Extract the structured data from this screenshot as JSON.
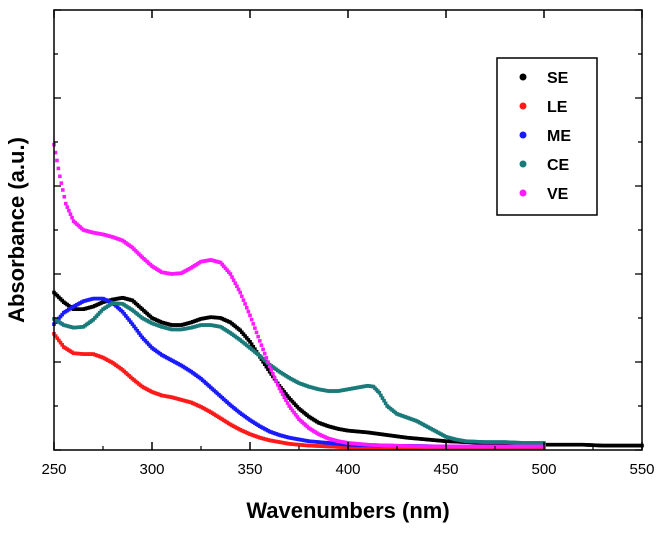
{
  "chart_data": {
    "type": "line",
    "title": "",
    "xlabel": "Wavenumbers (nm)",
    "ylabel": "Absorbance (a.u.)",
    "xlim": [
      250,
      550
    ],
    "ylim": [
      0,
      5
    ],
    "x_ticks": [
      250,
      300,
      350,
      400,
      450,
      500,
      550
    ],
    "y_tick_labels_shown": false,
    "grid": false,
    "legend_position": "top-right",
    "line_style": "dotted-markers",
    "series": [
      {
        "name": "SE",
        "color": "#000000",
        "points": [
          [
            250,
            1.79
          ],
          [
            255,
            1.68
          ],
          [
            260,
            1.6
          ],
          [
            265,
            1.6
          ],
          [
            270,
            1.63
          ],
          [
            275,
            1.68
          ],
          [
            280,
            1.71
          ],
          [
            285,
            1.73
          ],
          [
            290,
            1.7
          ],
          [
            295,
            1.6
          ],
          [
            300,
            1.5
          ],
          [
            305,
            1.45
          ],
          [
            310,
            1.42
          ],
          [
            315,
            1.42
          ],
          [
            320,
            1.45
          ],
          [
            325,
            1.49
          ],
          [
            330,
            1.51
          ],
          [
            335,
            1.5
          ],
          [
            340,
            1.45
          ],
          [
            345,
            1.36
          ],
          [
            350,
            1.23
          ],
          [
            355,
            1.06
          ],
          [
            360,
            0.89
          ],
          [
            365,
            0.73
          ],
          [
            370,
            0.59
          ],
          [
            375,
            0.47
          ],
          [
            380,
            0.38
          ],
          [
            385,
            0.31
          ],
          [
            390,
            0.27
          ],
          [
            395,
            0.24
          ],
          [
            400,
            0.22
          ],
          [
            410,
            0.2
          ],
          [
            420,
            0.17
          ],
          [
            430,
            0.14
          ],
          [
            440,
            0.12
          ],
          [
            450,
            0.1
          ],
          [
            460,
            0.09
          ],
          [
            470,
            0.08
          ],
          [
            480,
            0.07
          ],
          [
            490,
            0.07
          ],
          [
            500,
            0.06
          ],
          [
            510,
            0.06
          ],
          [
            520,
            0.06
          ],
          [
            530,
            0.05
          ],
          [
            540,
            0.05
          ],
          [
            550,
            0.05
          ]
        ]
      },
      {
        "name": "LE",
        "color": "#ff1a1a",
        "points": [
          [
            250,
            1.32
          ],
          [
            255,
            1.17
          ],
          [
            260,
            1.1
          ],
          [
            265,
            1.09
          ],
          [
            270,
            1.09
          ],
          [
            275,
            1.05
          ],
          [
            280,
            0.99
          ],
          [
            285,
            0.91
          ],
          [
            290,
            0.81
          ],
          [
            295,
            0.72
          ],
          [
            300,
            0.66
          ],
          [
            305,
            0.62
          ],
          [
            310,
            0.6
          ],
          [
            315,
            0.57
          ],
          [
            320,
            0.54
          ],
          [
            325,
            0.49
          ],
          [
            330,
            0.43
          ],
          [
            335,
            0.36
          ],
          [
            340,
            0.29
          ],
          [
            345,
            0.23
          ],
          [
            350,
            0.18
          ],
          [
            355,
            0.14
          ],
          [
            360,
            0.11
          ],
          [
            365,
            0.09
          ],
          [
            370,
            0.07
          ],
          [
            380,
            0.05
          ],
          [
            390,
            0.04
          ],
          [
            400,
            0.03
          ],
          [
            420,
            0.03
          ],
          [
            450,
            0.02
          ],
          [
            500,
            0.02
          ]
        ]
      },
      {
        "name": "ME",
        "color": "#1a1aff",
        "points": [
          [
            250,
            1.43
          ],
          [
            255,
            1.56
          ],
          [
            260,
            1.63
          ],
          [
            265,
            1.69
          ],
          [
            270,
            1.72
          ],
          [
            275,
            1.72
          ],
          [
            280,
            1.67
          ],
          [
            285,
            1.57
          ],
          [
            290,
            1.43
          ],
          [
            295,
            1.28
          ],
          [
            300,
            1.16
          ],
          [
            305,
            1.08
          ],
          [
            310,
            1.02
          ],
          [
            315,
            0.96
          ],
          [
            320,
            0.89
          ],
          [
            325,
            0.81
          ],
          [
            330,
            0.71
          ],
          [
            335,
            0.61
          ],
          [
            340,
            0.51
          ],
          [
            345,
            0.42
          ],
          [
            350,
            0.34
          ],
          [
            355,
            0.27
          ],
          [
            360,
            0.21
          ],
          [
            365,
            0.17
          ],
          [
            370,
            0.14
          ],
          [
            380,
            0.1
          ],
          [
            390,
            0.08
          ],
          [
            400,
            0.06
          ],
          [
            420,
            0.05
          ],
          [
            450,
            0.04
          ],
          [
            480,
            0.04
          ],
          [
            500,
            0.04
          ]
        ]
      },
      {
        "name": "CE",
        "color": "#1a7a7a",
        "points": [
          [
            250,
            1.49
          ],
          [
            255,
            1.42
          ],
          [
            260,
            1.39
          ],
          [
            265,
            1.4
          ],
          [
            270,
            1.48
          ],
          [
            275,
            1.6
          ],
          [
            280,
            1.67
          ],
          [
            285,
            1.66
          ],
          [
            290,
            1.59
          ],
          [
            295,
            1.5
          ],
          [
            300,
            1.44
          ],
          [
            305,
            1.4
          ],
          [
            310,
            1.37
          ],
          [
            315,
            1.37
          ],
          [
            320,
            1.39
          ],
          [
            325,
            1.42
          ],
          [
            330,
            1.42
          ],
          [
            335,
            1.4
          ],
          [
            340,
            1.33
          ],
          [
            345,
            1.25
          ],
          [
            350,
            1.16
          ],
          [
            355,
            1.07
          ],
          [
            360,
            0.97
          ],
          [
            365,
            0.89
          ],
          [
            370,
            0.82
          ],
          [
            375,
            0.76
          ],
          [
            380,
            0.72
          ],
          [
            385,
            0.69
          ],
          [
            390,
            0.67
          ],
          [
            395,
            0.67
          ],
          [
            400,
            0.69
          ],
          [
            405,
            0.71
          ],
          [
            410,
            0.73
          ],
          [
            413,
            0.72
          ],
          [
            416,
            0.65
          ],
          [
            420,
            0.5
          ],
          [
            425,
            0.41
          ],
          [
            430,
            0.37
          ],
          [
            435,
            0.33
          ],
          [
            440,
            0.27
          ],
          [
            445,
            0.21
          ],
          [
            450,
            0.15
          ],
          [
            455,
            0.12
          ],
          [
            460,
            0.1
          ],
          [
            470,
            0.09
          ],
          [
            480,
            0.09
          ],
          [
            490,
            0.08
          ],
          [
            500,
            0.08
          ]
        ]
      },
      {
        "name": "VE",
        "color": "#ff1aff",
        "points": [
          [
            250,
            3.47
          ],
          [
            253,
            3.11
          ],
          [
            256,
            2.8
          ],
          [
            260,
            2.6
          ],
          [
            265,
            2.5
          ],
          [
            270,
            2.47
          ],
          [
            275,
            2.45
          ],
          [
            280,
            2.42
          ],
          [
            285,
            2.38
          ],
          [
            290,
            2.3
          ],
          [
            295,
            2.19
          ],
          [
            300,
            2.09
          ],
          [
            305,
            2.02
          ],
          [
            310,
            2.0
          ],
          [
            315,
            2.01
          ],
          [
            320,
            2.07
          ],
          [
            325,
            2.14
          ],
          [
            330,
            2.16
          ],
          [
            335,
            2.13
          ],
          [
            340,
            2.0
          ],
          [
            345,
            1.79
          ],
          [
            350,
            1.53
          ],
          [
            355,
            1.24
          ],
          [
            360,
            0.95
          ],
          [
            365,
            0.7
          ],
          [
            370,
            0.5
          ],
          [
            375,
            0.35
          ],
          [
            380,
            0.25
          ],
          [
            385,
            0.18
          ],
          [
            390,
            0.13
          ],
          [
            395,
            0.1
          ],
          [
            400,
            0.08
          ],
          [
            410,
            0.06
          ],
          [
            420,
            0.05
          ],
          [
            440,
            0.04
          ],
          [
            460,
            0.04
          ],
          [
            480,
            0.04
          ],
          [
            500,
            0.04
          ]
        ]
      }
    ]
  }
}
